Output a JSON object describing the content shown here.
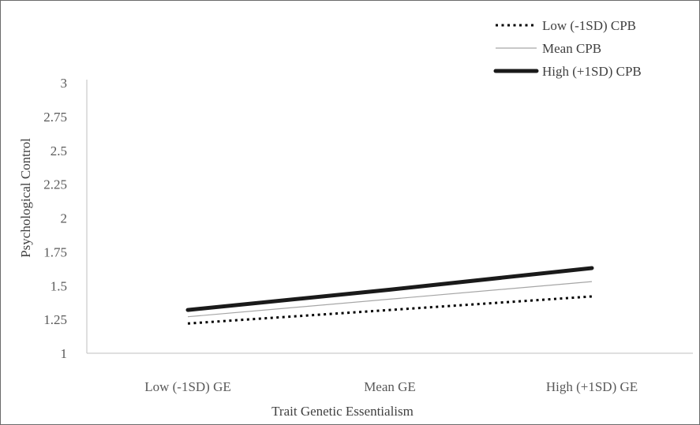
{
  "chart_data": {
    "type": "line",
    "categories": [
      "Low (-1SD) GE",
      "Mean GE",
      "High (+1SD) GE"
    ],
    "series": [
      {
        "name": "Low (-1SD) CPB",
        "values": [
          1.22,
          1.32,
          1.42
        ],
        "style": "dotted",
        "color": "#000000"
      },
      {
        "name": "Mean CPB",
        "values": [
          1.27,
          1.4,
          1.53
        ],
        "style": "thin",
        "color": "#a6a6a6"
      },
      {
        "name": "High (+1SD) CPB",
        "values": [
          1.32,
          1.47,
          1.63
        ],
        "style": "thick",
        "color": "#1a1a1a"
      }
    ],
    "xlabel": "Trait Genetic Essentialism",
    "ylabel": "Psychological Control",
    "ylim": [
      1,
      3
    ],
    "yticks": [
      "1",
      "1.25",
      "1.5",
      "1.75",
      "2",
      "2.25",
      "2.5",
      "2.75",
      "3"
    ],
    "grid": false,
    "legend_position": "top-right"
  }
}
